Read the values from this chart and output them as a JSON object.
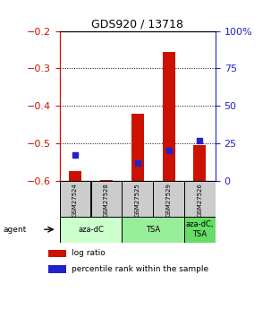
{
  "title": "GDS920 / 13718",
  "samples": [
    "GSM27524",
    "GSM27528",
    "GSM27525",
    "GSM27529",
    "GSM27526"
  ],
  "log_ratio": [
    -0.575,
    -0.598,
    -0.42,
    -0.255,
    -0.505
  ],
  "percentile_rank": [
    0.17,
    null,
    0.12,
    0.2,
    0.27
  ],
  "ylim_left": [
    -0.6,
    -0.2
  ],
  "ylim_right": [
    0,
    1.0
  ],
  "yticks_left": [
    -0.6,
    -0.5,
    -0.4,
    -0.3,
    -0.2
  ],
  "yticks_right": [
    0,
    0.25,
    0.5,
    0.75,
    1.0
  ],
  "ytick_labels_right": [
    "0",
    "25",
    "50",
    "75",
    "100%"
  ],
  "bar_color": "#cc1100",
  "percentile_color": "#2222cc",
  "baseline": -0.6,
  "groups": [
    {
      "label": "aza-dC",
      "indices": [
        0,
        1
      ],
      "color": "#ccffcc"
    },
    {
      "label": "TSA",
      "indices": [
        2,
        3
      ],
      "color": "#99ee99"
    },
    {
      "label": "aza-dC,\nTSA",
      "indices": [
        4
      ],
      "color": "#66dd66"
    }
  ],
  "legend_entries": [
    "log ratio",
    "percentile rank within the sample"
  ],
  "background_color": "#ffffff",
  "left_tick_color": "#cc1100",
  "right_tick_color": "#2222cc",
  "sample_bg_color": "#cccccc",
  "bar_width": 0.4
}
